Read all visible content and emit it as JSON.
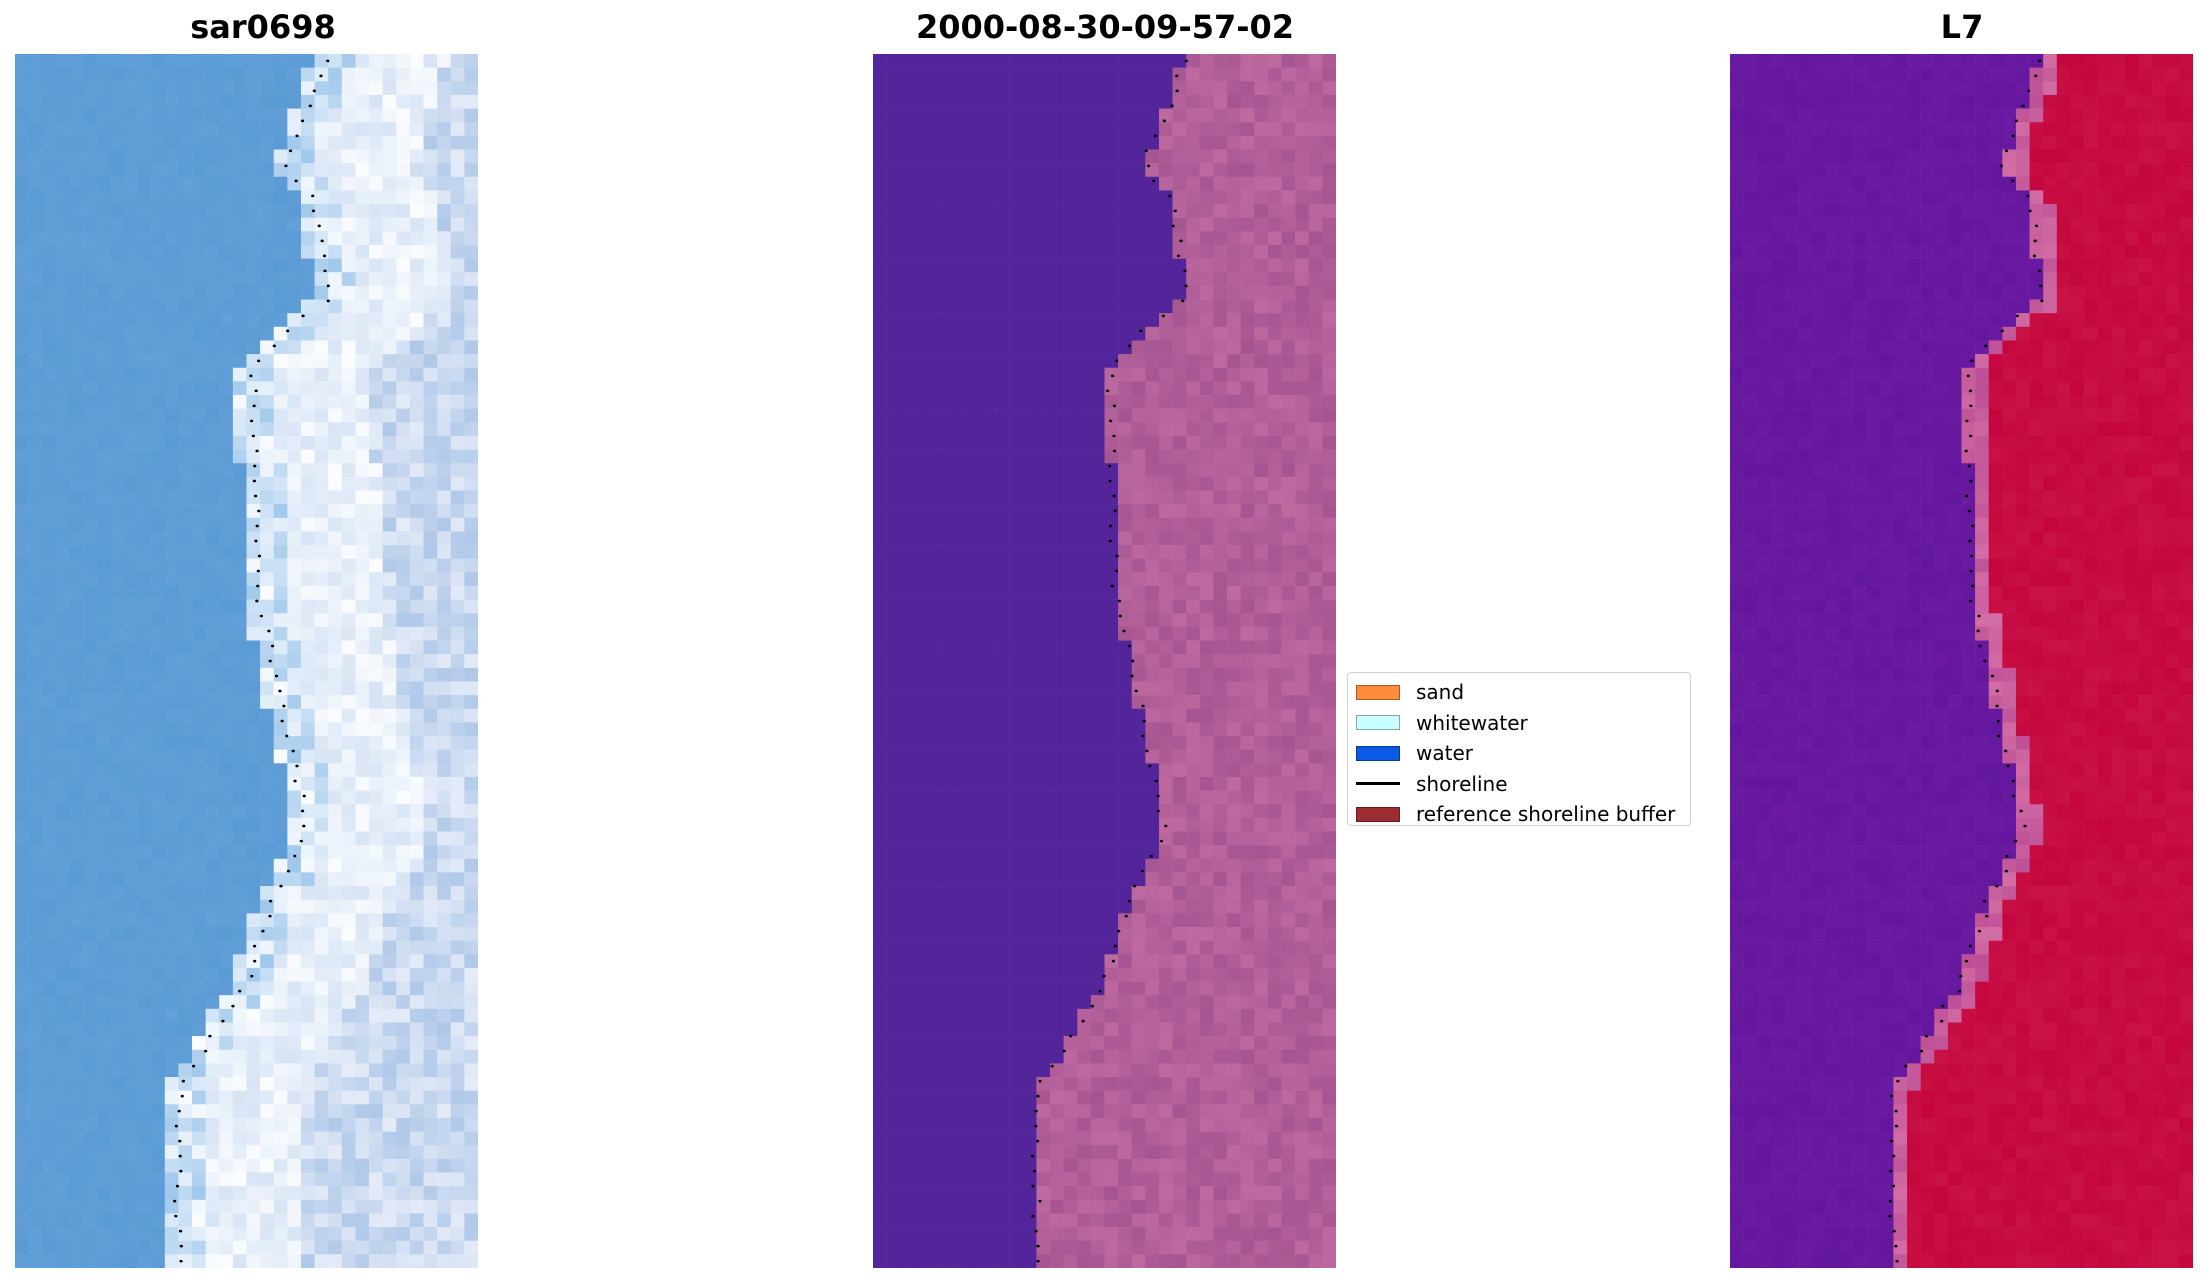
{
  "panels": [
    {
      "title": "sar0698",
      "style": "rgb",
      "colors": {
        "water": "#5b9bd5",
        "land": "#e8ecf7"
      }
    },
    {
      "title": "2000-08-30-09-57-02",
      "style": "class",
      "colors": {
        "water": "#53249a",
        "land": "#b4629e"
      }
    },
    {
      "title": "L7",
      "style": "index",
      "colors": {
        "water": "#6a1ba1",
        "land": "#c4063d"
      }
    }
  ],
  "legend": {
    "items": [
      {
        "label": "sand",
        "color": "#ff8c3b",
        "kind": "patch"
      },
      {
        "label": "whitewater",
        "color": "#c9ffff",
        "kind": "patch"
      },
      {
        "label": "water",
        "color": "#0a5ae6",
        "kind": "patch"
      },
      {
        "label": "shoreline",
        "color": "#000000",
        "kind": "line"
      },
      {
        "label": "reference shoreline buffer",
        "color": "#9b2d33",
        "kind": "patch"
      }
    ]
  }
}
